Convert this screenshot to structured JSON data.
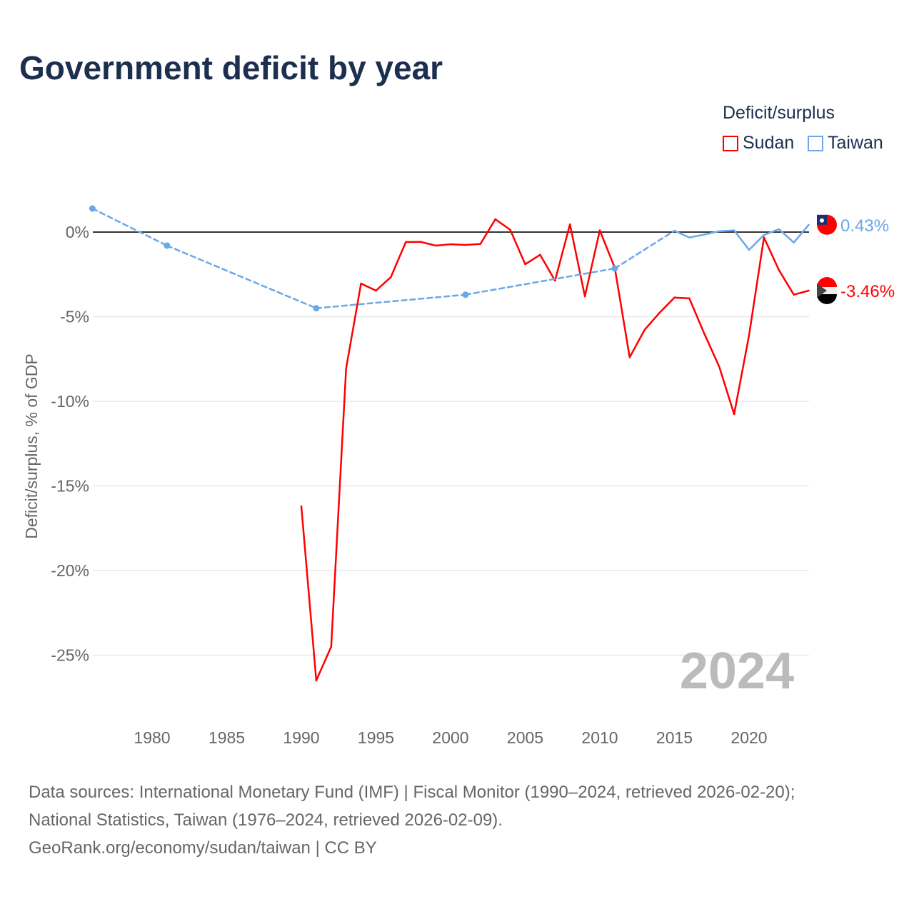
{
  "chart_data": {
    "type": "line",
    "title": "Government deficit by year",
    "ylabel": "Deficit/surplus, % of GDP",
    "xlabel": "",
    "ylim": [
      -27.5,
      2.5
    ],
    "xlim": [
      1976,
      2024
    ],
    "yticks": [
      0,
      -5,
      -10,
      -15,
      -20,
      -25
    ],
    "ytick_labels": [
      "0%",
      "-5%",
      "-10%",
      "-15%",
      "-20%",
      "-25%"
    ],
    "xticks": [
      1980,
      1985,
      1990,
      1995,
      2000,
      2005,
      2010,
      2015,
      2020
    ],
    "xtick_labels": [
      "1980",
      "1985",
      "1990",
      "1995",
      "2000",
      "2005",
      "2010",
      "2015",
      "2020"
    ],
    "legend_title": "Deficit/surplus",
    "year_label": "2024",
    "series": [
      {
        "name": "Sudan",
        "color": "#ff0000",
        "end_label": "-3.46%",
        "x": [
          1990,
          1991,
          1992,
          1993,
          1994,
          1995,
          1996,
          1997,
          1998,
          1999,
          2000,
          2001,
          2002,
          2003,
          2004,
          2005,
          2006,
          2007,
          2008,
          2009,
          2010,
          2011,
          2012,
          2013,
          2014,
          2015,
          2016,
          2017,
          2018,
          2019,
          2020,
          2021,
          2022,
          2023,
          2024
        ],
        "y": [
          -16.2,
          -26.5,
          -24.5,
          -8.06,
          -3.04,
          -3.46,
          -2.66,
          -0.59,
          -0.58,
          -0.8,
          -0.72,
          -0.76,
          -0.7,
          0.76,
          0.13,
          -1.9,
          -1.34,
          -2.87,
          0.46,
          -3.8,
          0.1,
          -2.1,
          -7.4,
          -5.78,
          -4.77,
          -3.87,
          -3.92,
          -6.0,
          -7.95,
          -10.76,
          -6.1,
          -0.32,
          -2.24,
          -3.7,
          -3.46
        ]
      },
      {
        "name": "Taiwan",
        "color": "#6aa8e8",
        "end_label": "0.43%",
        "x": [
          1976,
          1981,
          1991,
          2001,
          2011,
          2015,
          2016,
          2017,
          2018,
          2019,
          2020,
          2021,
          2022,
          2023,
          2024
        ],
        "y": [
          1.39,
          -0.8,
          -4.5,
          -3.7,
          -2.15,
          0.08,
          -0.32,
          -0.15,
          0.05,
          0.1,
          -1.05,
          -0.17,
          0.17,
          -0.62,
          0.43
        ]
      }
    ]
  },
  "footer": {
    "line1": "Data sources: International Monetary Fund (IMF) | Fiscal Monitor (1990–2024, retrieved 2026-02-20);",
    "line2": "National Statistics, Taiwan (1976–2024, retrieved 2026-02-09).",
    "line3": "GeoRank.org/economy/sudan/taiwan | CC BY"
  }
}
